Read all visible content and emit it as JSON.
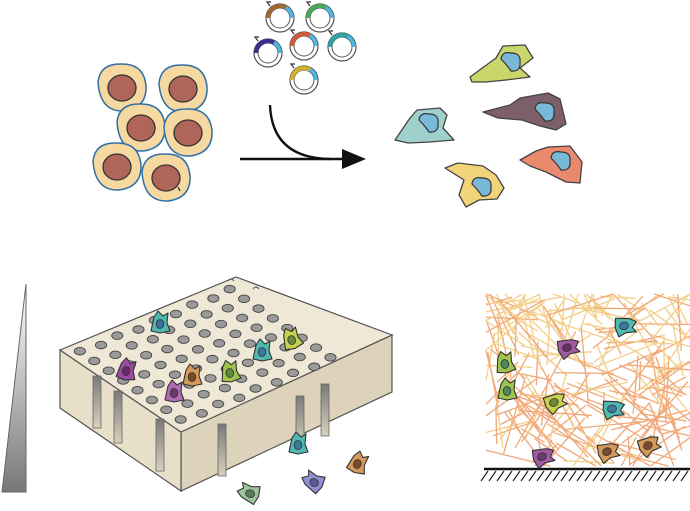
{
  "figure": {
    "panels": [
      {
        "id": "reprogramming",
        "icon": "cell-reprogramming-icon"
      },
      {
        "id": "transwell",
        "icon": "transwell-migration-icon"
      },
      {
        "id": "matrix",
        "icon": "3d-matrix-invasion-icon"
      }
    ],
    "colors": {
      "cell_fill": "#f6d9a0",
      "cell_outline": "#2f6fa8",
      "nucleus": "#b0655a",
      "plate_face": "#e8dfc9",
      "plate_top": "#efe8d6",
      "hole": "#9a9a9a",
      "fiber_light": "#f3cf8a",
      "fiber_orange": "#f0a878",
      "gradient_dark": "#7e7e7e"
    },
    "plasmids": [
      {
        "color": "#a0682e"
      },
      {
        "color": "#49a85a"
      },
      {
        "color": "#3a2f8f"
      },
      {
        "color": "#d25a3a"
      },
      {
        "color": "#2ba6a8"
      },
      {
        "color": "#d2b42a"
      }
    ],
    "migrated_cells": [
      {
        "color": "#c9d66a"
      },
      {
        "color": "#7d5f6b"
      },
      {
        "color": "#9fd0cc"
      },
      {
        "color": "#e98a6e"
      },
      {
        "color": "#f2d57a"
      }
    ]
  }
}
